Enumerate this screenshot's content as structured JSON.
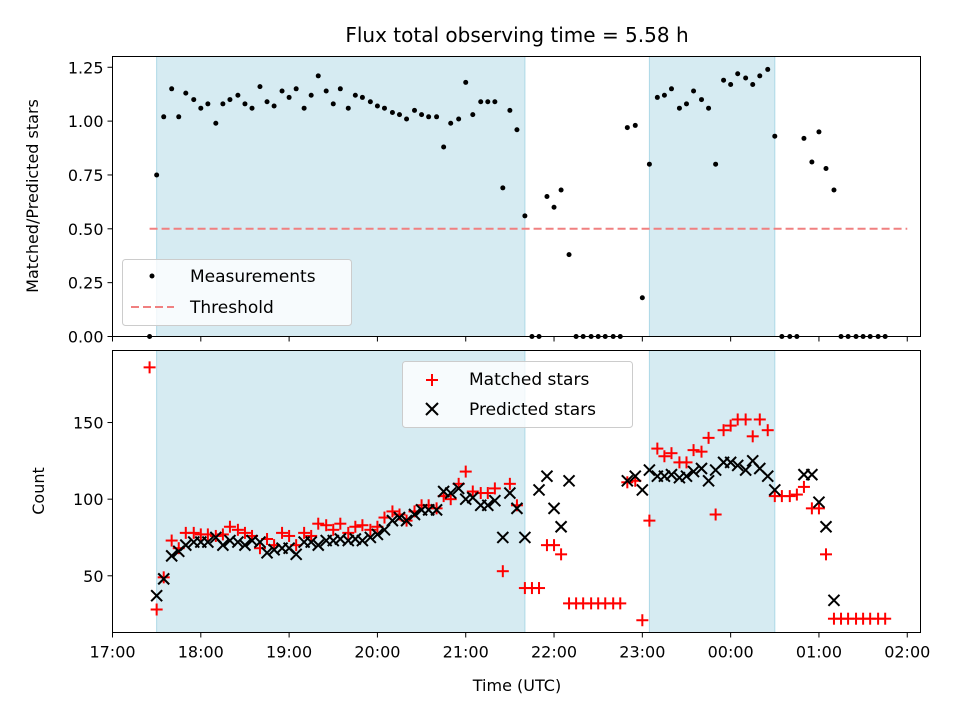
{
  "chart_data": {
    "title": "Flux total observing time = 5.58 h",
    "xlabel": "Time (UTC)",
    "xlim": [
      17.0,
      26.15
    ],
    "xticks": [
      {
        "v": 17,
        "label": "17:00"
      },
      {
        "v": 18,
        "label": "18:00"
      },
      {
        "v": 19,
        "label": "19:00"
      },
      {
        "v": 20,
        "label": "20:00"
      },
      {
        "v": 21,
        "label": "21:00"
      },
      {
        "v": 22,
        "label": "22:00"
      },
      {
        "v": 23,
        "label": "23:00"
      },
      {
        "v": 24,
        "label": "00:00"
      },
      {
        "v": 25,
        "label": "01:00"
      },
      {
        "v": 26,
        "label": "02:00"
      }
    ],
    "shaded_intervals": [
      [
        17.5,
        21.67
      ],
      [
        23.08,
        24.5
      ]
    ],
    "shade_color": "#add8e6",
    "panels": [
      {
        "type": "scatter",
        "ylabel": "Matched/Predicted stars",
        "ylim": [
          0.0,
          1.3
        ],
        "yticks": [
          {
            "v": 0.0,
            "label": "0.00"
          },
          {
            "v": 0.25,
            "label": "0.25"
          },
          {
            "v": 0.5,
            "label": "0.50"
          },
          {
            "v": 0.75,
            "label": "0.75"
          },
          {
            "v": 1.0,
            "label": "1.00"
          },
          {
            "v": 1.25,
            "label": "1.25"
          }
        ],
        "threshold": {
          "y": 0.5,
          "x": [
            17.42,
            26.0
          ],
          "color": "#f08080"
        },
        "legend": {
          "position": "lower-left",
          "measurements_label": "Measurements",
          "threshold_label": "Threshold"
        },
        "series": [
          {
            "name": "Measurements",
            "color": "#000000",
            "x": [
              17.42,
              17.5,
              17.58,
              17.67,
              17.75,
              17.83,
              17.92,
              18.0,
              18.08,
              18.17,
              18.25,
              18.33,
              18.42,
              18.5,
              18.58,
              18.67,
              18.75,
              18.83,
              18.92,
              19.0,
              19.08,
              19.17,
              19.25,
              19.33,
              19.42,
              19.5,
              19.58,
              19.67,
              19.75,
              19.83,
              19.92,
              20.0,
              20.08,
              20.17,
              20.25,
              20.33,
              20.42,
              20.5,
              20.58,
              20.67,
              20.75,
              20.83,
              20.92,
              21.0,
              21.08,
              21.17,
              21.25,
              21.33,
              21.42,
              21.5,
              21.58,
              21.67,
              21.75,
              21.83,
              21.92,
              22.0,
              22.08,
              22.17,
              22.25,
              22.33,
              22.42,
              22.5,
              22.58,
              22.67,
              22.75,
              22.83,
              22.92,
              23.0,
              23.08,
              23.17,
              23.25,
              23.33,
              23.42,
              23.5,
              23.58,
              23.67,
              23.75,
              23.83,
              23.92,
              24.0,
              24.08,
              24.17,
              24.25,
              24.33,
              24.42,
              24.5,
              24.58,
              24.67,
              24.75,
              24.83,
              24.92,
              25.0,
              25.08,
              25.17,
              25.25,
              25.33,
              25.42,
              25.5,
              25.58,
              25.67,
              25.75
            ],
            "y": [
              0.0,
              0.75,
              1.02,
              1.15,
              1.02,
              1.13,
              1.1,
              1.06,
              1.08,
              0.99,
              1.08,
              1.1,
              1.12,
              1.08,
              1.06,
              1.16,
              1.09,
              1.07,
              1.14,
              1.11,
              1.15,
              1.06,
              1.12,
              1.21,
              1.14,
              1.08,
              1.15,
              1.06,
              1.12,
              1.11,
              1.09,
              1.07,
              1.06,
              1.04,
              1.03,
              1.01,
              1.05,
              1.03,
              1.02,
              1.02,
              0.88,
              0.99,
              1.01,
              1.18,
              1.03,
              1.09,
              1.09,
              1.09,
              0.69,
              1.05,
              0.96,
              0.56,
              0.0,
              0.0,
              0.65,
              0.6,
              0.68,
              0.38,
              0.0,
              0.0,
              0.0,
              0.0,
              0.0,
              0.0,
              0.0,
              0.97,
              0.98,
              0.18,
              0.8,
              1.11,
              1.12,
              1.15,
              1.06,
              1.08,
              1.14,
              1.1,
              1.06,
              0.8,
              1.19,
              1.17,
              1.22,
              1.2,
              1.17,
              1.21,
              1.24,
              0.93,
              0.0,
              0.0,
              0.0,
              0.92,
              0.81,
              0.95,
              0.78,
              0.68,
              0.0,
              0.0,
              0.0,
              0.0,
              0.0,
              0.0,
              0.0
            ]
          }
        ]
      },
      {
        "type": "scatter",
        "ylabel": "Count",
        "ylim": [
          13,
          197
        ],
        "yticks": [
          {
            "v": 50,
            "label": "50"
          },
          {
            "v": 100,
            "label": "100"
          },
          {
            "v": 150,
            "label": "150"
          }
        ],
        "legend": {
          "position": "upper-center"
        },
        "series": [
          {
            "name": "Matched stars",
            "marker": "+",
            "color": "#ff0000",
            "x": [
              17.42,
              17.5,
              17.58,
              17.67,
              17.75,
              17.83,
              17.92,
              18.0,
              18.08,
              18.17,
              18.25,
              18.33,
              18.42,
              18.5,
              18.58,
              18.67,
              18.75,
              18.83,
              18.92,
              19.0,
              19.08,
              19.17,
              19.25,
              19.33,
              19.42,
              19.5,
              19.58,
              19.67,
              19.75,
              19.83,
              19.92,
              20.0,
              20.08,
              20.17,
              20.25,
              20.33,
              20.42,
              20.5,
              20.58,
              20.67,
              20.75,
              20.83,
              20.92,
              21.0,
              21.08,
              21.17,
              21.25,
              21.33,
              21.42,
              21.5,
              21.58,
              21.67,
              21.75,
              21.83,
              21.92,
              22.0,
              22.08,
              22.17,
              22.25,
              22.33,
              22.42,
              22.5,
              22.58,
              22.67,
              22.75,
              22.83,
              22.92,
              23.0,
              23.08,
              23.17,
              23.25,
              23.33,
              23.42,
              23.5,
              23.58,
              23.67,
              23.75,
              23.83,
              23.92,
              24.0,
              24.08,
              24.17,
              24.25,
              24.33,
              24.42,
              24.5,
              24.58,
              24.67,
              24.75,
              24.83,
              24.92,
              25.0,
              25.08,
              25.17,
              25.25,
              25.33,
              25.42,
              25.5,
              25.58,
              25.67,
              25.75
            ],
            "y": [
              186,
              28,
              49,
              73,
              68,
              78,
              78,
              77,
              77,
              76,
              77,
              82,
              80,
              78,
              76,
              68,
              74,
              70,
              78,
              76,
              70,
              78,
              76,
              84,
              83,
              80,
              84,
              78,
              82,
              83,
              80,
              82,
              88,
              92,
              90,
              86,
              92,
              96,
              96,
              94,
              102,
              100,
              110,
              118,
              105,
              104,
              104,
              107,
              53,
              110,
              96,
              42,
              42,
              42,
              70,
              70,
              64,
              32,
              32,
              32,
              32,
              32,
              32,
              32,
              32,
              111,
              112,
              21,
              86,
              133,
              128,
              130,
              124,
              124,
              132,
              131,
              140,
              90,
              145,
              148,
              152,
              152,
              141,
              152,
              145,
              102,
              102,
              102,
              103,
              108,
              94,
              94,
              64,
              22,
              22,
              22,
              22,
              22,
              22,
              22,
              22
            ]
          },
          {
            "name": "Predicted stars",
            "marker": "x",
            "color": "#000000",
            "x": [
              17.5,
              17.58,
              17.67,
              17.75,
              17.83,
              17.92,
              18.0,
              18.08,
              18.17,
              18.25,
              18.33,
              18.42,
              18.5,
              18.58,
              18.67,
              18.75,
              18.83,
              18.92,
              19.0,
              19.08,
              19.17,
              19.25,
              19.33,
              19.42,
              19.5,
              19.58,
              19.67,
              19.75,
              19.83,
              19.92,
              20.0,
              20.08,
              20.17,
              20.25,
              20.33,
              20.42,
              20.5,
              20.58,
              20.67,
              20.75,
              20.83,
              20.92,
              21.0,
              21.08,
              21.17,
              21.25,
              21.33,
              21.42,
              21.5,
              21.58,
              21.67,
              21.83,
              21.92,
              22.0,
              22.08,
              22.17,
              22.83,
              22.92,
              23.0,
              23.08,
              23.17,
              23.25,
              23.33,
              23.42,
              23.5,
              23.58,
              23.67,
              23.75,
              23.83,
              23.92,
              24.0,
              24.08,
              24.17,
              24.25,
              24.33,
              24.42,
              24.5,
              24.83,
              24.92,
              25.0,
              25.08,
              25.17
            ],
            "y": [
              37,
              48,
              63,
              66,
              70,
              72,
              72,
              72,
              75,
              70,
              73,
              72,
              70,
              73,
              72,
              65,
              67,
              68,
              68,
              64,
              72,
              72,
              70,
              73,
              73,
              74,
              73,
              74,
              73,
              75,
              77,
              80,
              86,
              88,
              86,
              90,
              93,
              93,
              93,
              105,
              104,
              107,
              100,
              101,
              96,
              96,
              99,
              75,
              104,
              94,
              75,
              106,
              115,
              94,
              82,
              112,
              112,
              115,
              106,
              119,
              115,
              115,
              116,
              114,
              115,
              118,
              120,
              112,
              119,
              124,
              124,
              122,
              119,
              125,
              120,
              115,
              106,
              116,
              116,
              98,
              82,
              34
            ]
          }
        ]
      }
    ]
  }
}
